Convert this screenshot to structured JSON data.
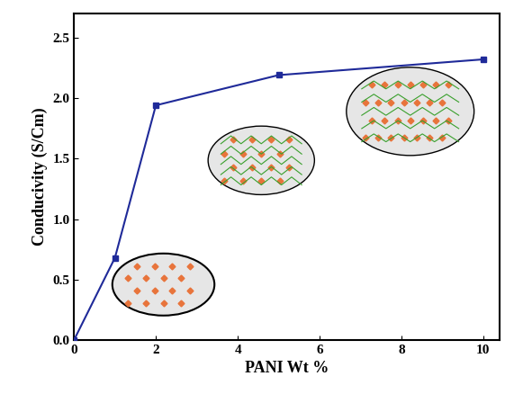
{
  "chart_data": {
    "type": "line",
    "x_label": "PANI Wt %",
    "y_label": "Conducivity (S/Cm)",
    "x": [
      0,
      1,
      2,
      5,
      10
    ],
    "values": [
      0.0,
      0.68,
      1.94,
      2.19,
      2.32
    ],
    "color": "#1f2a99",
    "marker": "s",
    "line_style": "solid",
    "xlim": [
      0,
      10.4
    ],
    "ylim": [
      0,
      2.7
    ],
    "xticks": [
      0,
      2,
      4,
      6,
      8,
      10
    ],
    "yticks": [
      {
        "value": 0,
        "label": "0.0"
      },
      {
        "value": 0.5,
        "label": "0.5"
      },
      {
        "value": 1.0,
        "label": "1.0"
      },
      {
        "value": 1.5,
        "label": "1.5"
      },
      {
        "value": 2.0,
        "label": "2.0"
      },
      {
        "value": 2.5,
        "label": "2.5"
      }
    ],
    "grid": false
  }
}
